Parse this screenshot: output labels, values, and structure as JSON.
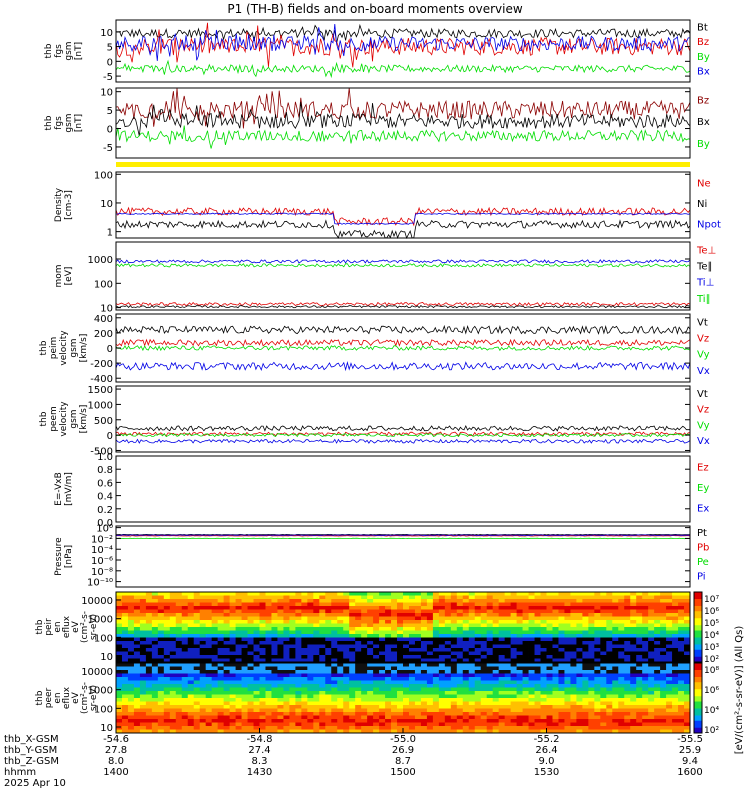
{
  "title": "P1 (TH-B) fields and on-board moments overview",
  "colors": {
    "black": "#000000",
    "red": "#e00000",
    "green": "#00dd00",
    "blue": "#0000e6",
    "darkred": "#8b0000",
    "yellow": "#ffee00"
  },
  "chart_data": {
    "type": "line",
    "x_ticks": [
      "1400",
      "1430",
      "1500",
      "1530",
      "1600"
    ],
    "x_minutes": [
      0,
      30,
      60,
      90,
      120
    ],
    "date_label": "2025 Apr 10",
    "x_meta": {
      "rows": [
        {
          "label": "thb_X-GSM",
          "values": [
            "-54.6",
            "-54.8",
            "-55.0",
            "-55.2",
            "-55.5"
          ]
        },
        {
          "label": "thb_Y-GSM",
          "values": [
            "27.8",
            "27.4",
            "26.9",
            "26.4",
            "25.9"
          ]
        },
        {
          "label": "thb_Z-GSM",
          "values": [
            "8.0",
            "8.3",
            "8.7",
            "9.0",
            "9.4"
          ]
        },
        {
          "label": "hhmm",
          "values": [
            "1400",
            "1430",
            "1500",
            "1530",
            "1600"
          ]
        }
      ]
    },
    "panels": [
      {
        "id": "fgs",
        "ylabel": [
          "thb",
          "fgs",
          "gsm",
          "[nT]"
        ],
        "ylim": [
          -7,
          14
        ],
        "yticks": [
          "10",
          "5",
          "0",
          "-5"
        ],
        "ytick_vals": [
          10,
          5,
          0,
          -5
        ],
        "series": [
          {
            "name": "Bt",
            "color": "#000000",
            "base": 9.5,
            "amp": 1.5,
            "spike": 3
          },
          {
            "name": "Bz",
            "color": "#e00000",
            "base": 5,
            "amp": 3,
            "spike": 6
          },
          {
            "name": "By",
            "color": "#00dd00",
            "base": -2.5,
            "amp": 1.2,
            "spike": 2
          },
          {
            "name": "Bx",
            "color": "#0000e6",
            "base": 6,
            "amp": 2.5,
            "spike": 5
          }
        ]
      },
      {
        "id": "fgs_fac",
        "ylabel": [
          "thb",
          "fgs",
          "gsm",
          "[nT]"
        ],
        "ylim": [
          -8,
          11
        ],
        "yticks": [
          "10",
          "5",
          "0",
          "-5"
        ],
        "ytick_vals": [
          10,
          5,
          0,
          -5
        ],
        "series": [
          {
            "name": "Bz",
            "color": "#8b0000",
            "base": 5,
            "amp": 2.5,
            "spike": 5
          },
          {
            "name": "Bx",
            "color": "#000000",
            "base": 2,
            "amp": 2,
            "spike": 4
          },
          {
            "name": "By",
            "color": "#00dd00",
            "base": -2,
            "amp": 1.5,
            "spike": 3
          }
        ]
      },
      {
        "id": "density",
        "ylabel": [
          "Density",
          "[cm-3]"
        ],
        "ylim": [
          0.6,
          120
        ],
        "log": true,
        "yticks": [
          "100",
          "10",
          "1"
        ],
        "ytick_vals": [
          100,
          10,
          1
        ],
        "series": [
          {
            "name": "Ne",
            "color": "#e00000",
            "base": 5,
            "amp": 0.3
          },
          {
            "name": "Ni",
            "color": "#000000",
            "base": 1.8,
            "amp": 0.3
          },
          {
            "name": "Npot",
            "color": "#0000e6",
            "base": 4.2,
            "amp": 0.05
          }
        ]
      },
      {
        "id": "temp",
        "ylabel": [
          "mom",
          "[eV]"
        ],
        "ylim": [
          8,
          5000
        ],
        "log": true,
        "yticks": [
          "1000",
          "100",
          "10"
        ],
        "ytick_vals": [
          1000,
          100,
          10
        ],
        "series": [
          {
            "name": "Te⊥",
            "color": "#e00000",
            "base": 14,
            "amp": 0.15
          },
          {
            "name": "Te∥",
            "color": "#000000",
            "base": 11,
            "amp": 0.1
          },
          {
            "name": "Ti⊥",
            "color": "#0000e6",
            "base": 800,
            "amp": 0.15
          },
          {
            "name": "Ti∥",
            "color": "#00dd00",
            "base": 550,
            "amp": 0.15
          }
        ]
      },
      {
        "id": "vi",
        "ylabel": [
          "thb",
          "peim",
          "velocity",
          "gsm",
          "[km/s]"
        ],
        "ylim": [
          -450,
          450
        ],
        "yticks": [
          "400",
          "200",
          "0",
          "-200",
          "-400"
        ],
        "ytick_vals": [
          400,
          200,
          0,
          -200,
          -400
        ],
        "series": [
          {
            "name": "Vt",
            "color": "#000000",
            "base": 240,
            "amp": 50
          },
          {
            "name": "Vz",
            "color": "#e00000",
            "base": 70,
            "amp": 40
          },
          {
            "name": "Vy",
            "color": "#00dd00",
            "base": 0,
            "amp": 30
          },
          {
            "name": "Vx",
            "color": "#0000e6",
            "base": -240,
            "amp": 50
          }
        ]
      },
      {
        "id": "ve",
        "ylabel": [
          "thb",
          "peem",
          "velocity",
          "gsm",
          "[km/s]"
        ],
        "ylim": [
          -550,
          1600
        ],
        "yticks": [
          "1500",
          "1000",
          "500",
          "0",
          "-500"
        ],
        "ytick_vals": [
          1500,
          1000,
          500,
          0,
          -500
        ],
        "series": [
          {
            "name": "Vt",
            "color": "#000000",
            "base": 220,
            "amp": 80
          },
          {
            "name": "Vz",
            "color": "#e00000",
            "base": 40,
            "amp": 60
          },
          {
            "name": "Vy",
            "color": "#00dd00",
            "base": 0,
            "amp": 50
          },
          {
            "name": "Vx",
            "color": "#0000e6",
            "base": -200,
            "amp": 60
          }
        ]
      },
      {
        "id": "efield",
        "ylabel": [
          "E=-VxB",
          "[mV/m]"
        ],
        "ylim": [
          0,
          1
        ],
        "yticks": [
          "1.0",
          "0.8",
          "0.6",
          "0.4",
          "0.2",
          "0.0"
        ],
        "ytick_vals": [
          1,
          0.8,
          0.6,
          0.4,
          0.2,
          0
        ],
        "series": [
          {
            "name": "Ez",
            "color": "#e00000",
            "empty": true
          },
          {
            "name": "Ey",
            "color": "#00dd00",
            "empty": true
          },
          {
            "name": "Ex",
            "color": "#0000e6",
            "empty": true
          }
        ]
      },
      {
        "id": "pressure",
        "ylabel": [
          "Pressure",
          "[nPa]"
        ],
        "ylim": [
          1e-11,
          2
        ],
        "log": true,
        "yticks": [
          "10⁰",
          "10⁻²",
          "10⁻⁴",
          "10⁻⁶",
          "10⁻⁸",
          "10⁻¹⁰"
        ],
        "ytick_vals": [
          1,
          0.01,
          0.0001,
          1e-06,
          1e-08,
          1e-10
        ],
        "series": [
          {
            "name": "Pt",
            "color": "#000000",
            "base": 0.05,
            "amp": 0.1
          },
          {
            "name": "Pb",
            "color": "#e00000",
            "base": 0.03,
            "amp": 0.1
          },
          {
            "name": "Pe",
            "color": "#00dd00",
            "base": 0.01,
            "amp": 0.1
          },
          {
            "name": "Pi",
            "color": "#0000e6",
            "base": 0.04,
            "amp": 0.1
          }
        ]
      }
    ],
    "spectrograms": [
      {
        "id": "peir",
        "ylabel": [
          "thb",
          "peir",
          "en",
          "eflux",
          "eV",
          "(cm²-s-",
          "sr-eV)"
        ],
        "yticks": [
          "10000",
          "1000",
          "100",
          "10"
        ],
        "colorbar_ticks": [
          "10⁷",
          "10⁶",
          "10⁵",
          "10⁴",
          "10³",
          "10²"
        ],
        "colorbar_label": "[eV/(cm²-s-sr-eV)] (All Qs)"
      },
      {
        "id": "peer",
        "ylabel": [
          "thb",
          "peer",
          "en",
          "eflux",
          "eV",
          "(cm²-s-",
          "sr-eV)"
        ],
        "yticks": [
          "10000",
          "1000",
          "100",
          "10"
        ],
        "colorbar_ticks": [
          "10⁸",
          "10⁶",
          "10⁴",
          "10²"
        ],
        "colorbar_label": "[eV/(cm²-s-sr-eV)]"
      }
    ]
  }
}
